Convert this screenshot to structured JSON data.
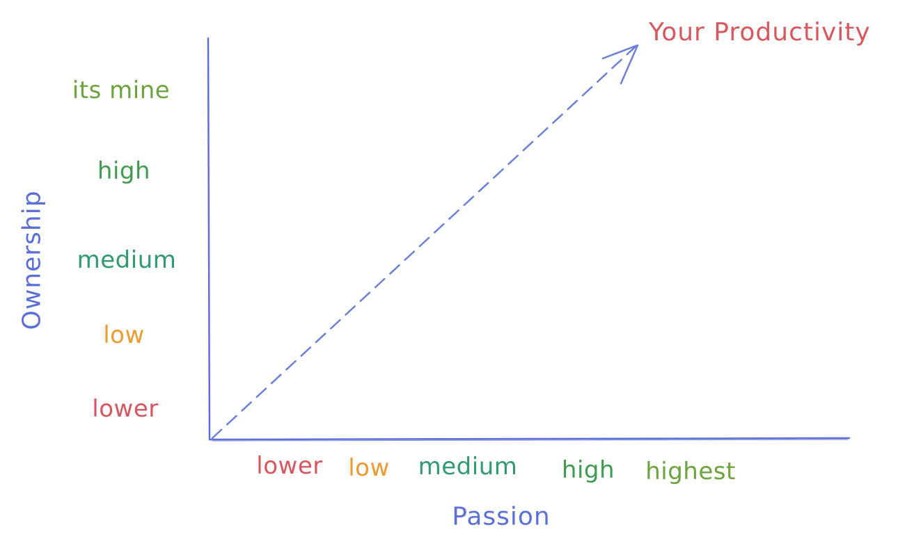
{
  "colors": {
    "axis": "#5b6fd9",
    "arrow": "#6a7fdc",
    "lower": "#d9545e",
    "low": "#ef9a2f",
    "medium": "#2f9a6e",
    "high": "#3e9b4f",
    "top": "#6ba33d",
    "productivity": "#d9575c",
    "axis_title": "#5b6fd9"
  },
  "axes": {
    "y_title": "Ownership",
    "x_title": "Passion"
  },
  "y_levels": [
    {
      "label": "its mine",
      "color_key": "top"
    },
    {
      "label": "high",
      "color_key": "high"
    },
    {
      "label": "medium",
      "color_key": "medium"
    },
    {
      "label": "low",
      "color_key": "low"
    },
    {
      "label": "lower",
      "color_key": "lower"
    }
  ],
  "x_levels": [
    {
      "label": "lower",
      "color_key": "lower"
    },
    {
      "label": "low",
      "color_key": "low"
    },
    {
      "label": "medium",
      "color_key": "medium"
    },
    {
      "label": "high",
      "color_key": "high"
    },
    {
      "label": "highest",
      "color_key": "top"
    }
  ],
  "arrow": {
    "label": "Your Productivity",
    "style": "dashed"
  }
}
